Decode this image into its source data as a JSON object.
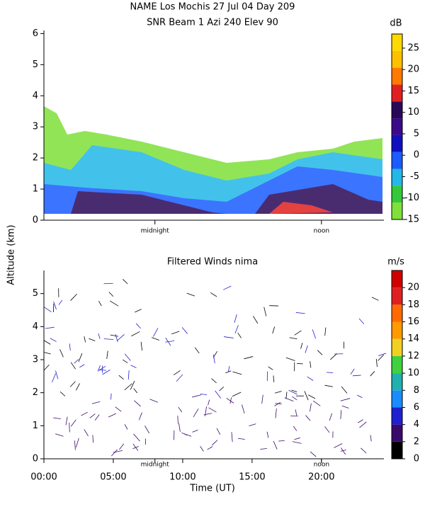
{
  "chart_data": [
    {
      "type": "heatmap",
      "title": [
        "NAME Los Mochis   27 Jul 04 Day 209",
        "SNR Beam 1 Azi 240 Elev 90"
      ],
      "y_label": "Altitude (km)",
      "xlim": [
        0,
        24.5
      ],
      "xticks": [
        {
          "value": 8,
          "label": "midnight"
        },
        {
          "value": 20,
          "label": "noon"
        }
      ],
      "ylim": [
        0,
        6.1
      ],
      "yticks": [
        0,
        1,
        2,
        3,
        4,
        5,
        6
      ],
      "colorbar": {
        "unit": "dB",
        "lim": [
          -15,
          28.3
        ],
        "ticks": [
          -15,
          -10,
          -5,
          0,
          5,
          10,
          15,
          20,
          25
        ],
        "colors": [
          "#7fe03a",
          "#35c83a",
          "#22b8e8",
          "#1a5cff",
          "#1010c0",
          "#3a0a8a",
          "#2a0858",
          "#e02020",
          "#ff7a00",
          "#ffc000",
          "#ffd800"
        ]
      }
    },
    {
      "type": "wind-barbs",
      "title": "Filtered Winds nima",
      "x_label": "Time (UT)",
      "xlim": [
        0,
        24.5
      ],
      "xticks": [
        {
          "value": 0,
          "label": "00:00"
        },
        {
          "value": 5,
          "label": "05:00"
        },
        {
          "value": 10,
          "label": "10:00"
        },
        {
          "value": 15,
          "label": "15:00"
        },
        {
          "value": 20,
          "label": "20:00"
        }
      ],
      "local_xticks": [
        {
          "value": 8,
          "label": "midnight"
        },
        {
          "value": 20,
          "label": "noon"
        }
      ],
      "ylim": [
        0,
        5.7
      ],
      "yticks": [
        0,
        1,
        2,
        3,
        4,
        5
      ],
      "colorbar": {
        "unit": "m/s",
        "lim": [
          0,
          22
        ],
        "ticks": [
          0,
          2,
          4,
          6,
          8,
          10,
          12,
          14,
          16,
          18,
          20
        ],
        "colors": [
          "#000000",
          "#3a0a6a",
          "#2020d0",
          "#1a8cff",
          "#20b0b0",
          "#40d040",
          "#f0d020",
          "#ff9a00",
          "#ff6a00",
          "#e02020",
          "#d00000"
        ]
      }
    }
  ]
}
